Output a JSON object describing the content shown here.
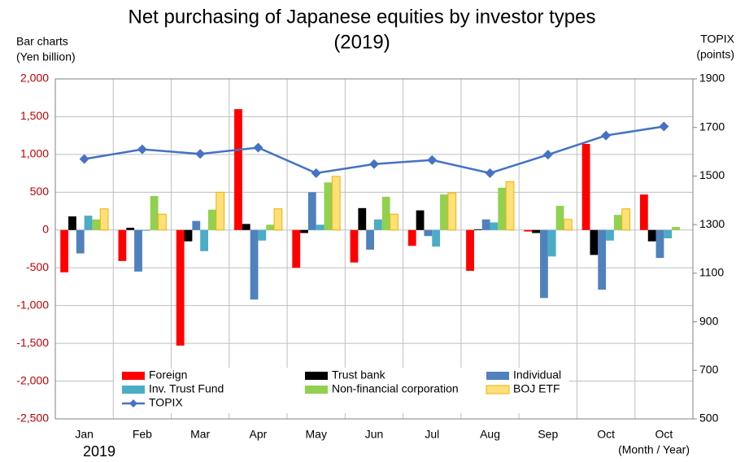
{
  "chart_data": {
    "type": "bar",
    "title": "Net purchasing of Japanese equities by investor types",
    "subtitle": "(2019)",
    "y_label": [
      "Bar charts",
      "(Yen billion)"
    ],
    "y2_label": [
      "TOPIX",
      "(points)"
    ],
    "x_label": "(Month / Year)",
    "year_label": "2019",
    "categories": [
      "Jan",
      "Feb",
      "Mar",
      "Apr",
      "May",
      "Jun",
      "Jul",
      "Aug",
      "Sep",
      "Oct",
      "Oct"
    ],
    "ylim": [
      -2500,
      2000
    ],
    "yticks": [
      {
        "value": 2000,
        "label": "2,000"
      },
      {
        "value": 1500,
        "label": "1,500"
      },
      {
        "value": 1000,
        "label": "1,000"
      },
      500,
      0,
      -500,
      {
        "value": -1000,
        "label": "-1,000"
      },
      {
        "value": -1500,
        "label": "-1,500"
      },
      {
        "value": -2000,
        "label": "-2,000"
      },
      {
        "value": -2500,
        "label": "-2,500"
      }
    ],
    "y2lim": [
      500,
      1900
    ],
    "y2ticks": [
      1900,
      1700,
      1500,
      1300,
      1100,
      900,
      700,
      500
    ],
    "grid": true,
    "series": [
      {
        "name": "Foreign",
        "color": "#ff0000",
        "values": [
          -560,
          -410,
          -1530,
          1600,
          -500,
          -430,
          -210,
          -540,
          -20,
          1140,
          470
        ]
      },
      {
        "name": "Trust bank",
        "color": "#000000",
        "values": [
          180,
          30,
          -150,
          80,
          -40,
          290,
          260,
          10,
          -40,
          -330,
          -150
        ]
      },
      {
        "name": "Individual",
        "color": "#4f81bd",
        "values": [
          -310,
          -550,
          120,
          -920,
          500,
          -260,
          -80,
          140,
          -900,
          -790,
          -370
        ]
      },
      {
        "name": "Inv. Trust Fund",
        "color": "#4bacc6",
        "values": [
          190,
          -10,
          -280,
          -140,
          70,
          140,
          -220,
          100,
          -350,
          -140,
          -110
        ]
      },
      {
        "name": "Non-financial corporation",
        "color": "#92d050",
        "values": [
          140,
          450,
          270,
          70,
          630,
          440,
          470,
          560,
          320,
          200,
          40
        ]
      },
      {
        "name": "BOJ ETF",
        "color": "#ffe07a",
        "values": [
          280,
          210,
          500,
          280,
          710,
          210,
          490,
          640,
          140,
          280,
          null
        ]
      },
      {
        "name": "TOPIX",
        "color": "#4472c4",
        "type": "line",
        "axis": "y2",
        "values": [
          1570,
          1610,
          1591,
          1617,
          1512,
          1549,
          1566,
          1512,
          1588,
          1667,
          1704
        ]
      }
    ]
  }
}
